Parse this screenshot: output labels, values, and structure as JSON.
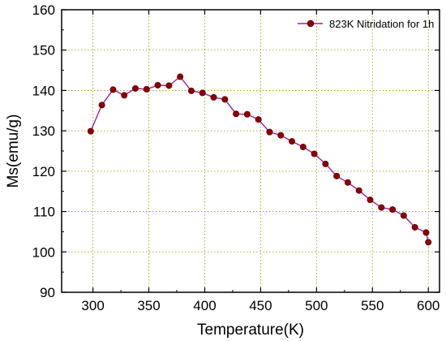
{
  "chart_data": {
    "type": "line",
    "xlabel": "Temperature(K)",
    "ylabel": "Ms(emu/g)",
    "xlim": [
      272,
      610
    ],
    "ylim": [
      90,
      160
    ],
    "xticks": [
      300,
      350,
      400,
      450,
      500,
      550,
      600
    ],
    "yticks": [
      90,
      100,
      110,
      120,
      130,
      140,
      150,
      160
    ],
    "grid": true,
    "legend_position": "top-right",
    "series": [
      {
        "name": "823K Nitridation for 1h",
        "color": "#8b0000",
        "line_color": "#a0209a",
        "x": [
          298,
          308,
          318,
          328,
          338,
          348,
          358,
          368,
          378,
          388,
          398,
          408,
          418,
          428,
          438,
          448,
          458,
          468,
          478,
          488,
          498,
          508,
          518,
          528,
          538,
          548,
          558,
          568,
          578,
          588,
          598,
          600
        ],
        "y": [
          129.9,
          136.4,
          140.2,
          138.8,
          140.5,
          140.3,
          141.3,
          141.2,
          143.4,
          139.9,
          139.4,
          138.3,
          137.8,
          134.2,
          134.1,
          132.8,
          129.7,
          128.9,
          127.4,
          126.0,
          124.3,
          121.8,
          118.8,
          117.2,
          115.2,
          112.9,
          111.0,
          110.5,
          109.0,
          106.1,
          104.8,
          102.4
        ]
      }
    ]
  }
}
